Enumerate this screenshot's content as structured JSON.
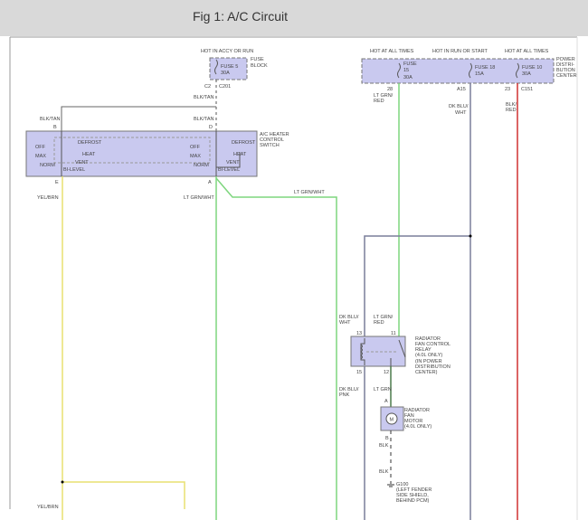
{
  "page": {
    "title": "Fig 1: A/C Circuit"
  },
  "colors": {
    "yellow": "#e8e070",
    "green": "#7ed67e",
    "red": "#d03030",
    "bluegray": "#7a7f9a",
    "gray": "#777777",
    "box_fill": "#c9c9ef",
    "dkgreen": "#4a7a4a"
  },
  "fuse_block": {
    "hot": "HOT IN ACCY OR RUN",
    "fuse": "FUSE 5",
    "rating": "30A",
    "label1": "FUSE",
    "label2": "BLOCK",
    "conn1": "C2",
    "conn2": "C201"
  },
  "switch": {
    "label": [
      "A/C HEATER",
      "CONTROL",
      "SWITCH"
    ],
    "wire_top": "BLK/TAN",
    "pin_b": "B",
    "pin_d": "D",
    "pin_e": "E",
    "pin_a": "A",
    "positions": {
      "off": "OFF",
      "max": "MAX",
      "norm": "NORM",
      "defrost": "DEFROST",
      "heat": "HEAT",
      "vent": "VENT",
      "bilevel": "BI-LEVEL"
    }
  },
  "wires": {
    "yel_brn": "YEL/BRN",
    "lt_grn_wht": "LT GRN/WHT",
    "lt_grn_red": [
      "LT GRN/",
      "RED"
    ],
    "dk_blu_wht": [
      "DK BLU/",
      "WHT"
    ],
    "blk_red": [
      "BLK/",
      "RED"
    ],
    "dk_blu_pnk": [
      "DK BLU/",
      "PNK"
    ],
    "lt_grn": "LT GRN",
    "blk": "BLK"
  },
  "pdc": {
    "hot1": "HOT AT ALL TIMES",
    "hot2": "HOT IN RUN OR START",
    "hot3": "HOT AT ALL TIMES",
    "fuse15": [
      "FUSE",
      "15",
      "30A"
    ],
    "fuse18": [
      "FUSE 18",
      "15A"
    ],
    "fuse10": [
      "FUSE 10",
      "30A"
    ],
    "label": [
      "POWER",
      "DISTRI-",
      "BUTION",
      "CENTER"
    ],
    "pin28": "28",
    "pinA15": "A15",
    "pin23": "23",
    "conn": "C151"
  },
  "relay": {
    "label": [
      "RADIATOR",
      "FAN CONTROL",
      "RELAY",
      "(4.0L ONLY)",
      "(IN POWER",
      "DISTRIBUTION",
      "CENTER)"
    ],
    "pins": [
      "13",
      "11",
      "15",
      "12"
    ]
  },
  "motor": {
    "symbol": "M",
    "label": [
      "RADIATOR",
      "FAN",
      "MOTOR",
      "(4.0L ONLY)"
    ],
    "pin_a": "A",
    "pin_b": "B"
  },
  "ground": {
    "label": [
      "G100",
      "(LEFT FENDER",
      "SIDE SHIELD,",
      "BEHIND PCM)"
    ]
  }
}
